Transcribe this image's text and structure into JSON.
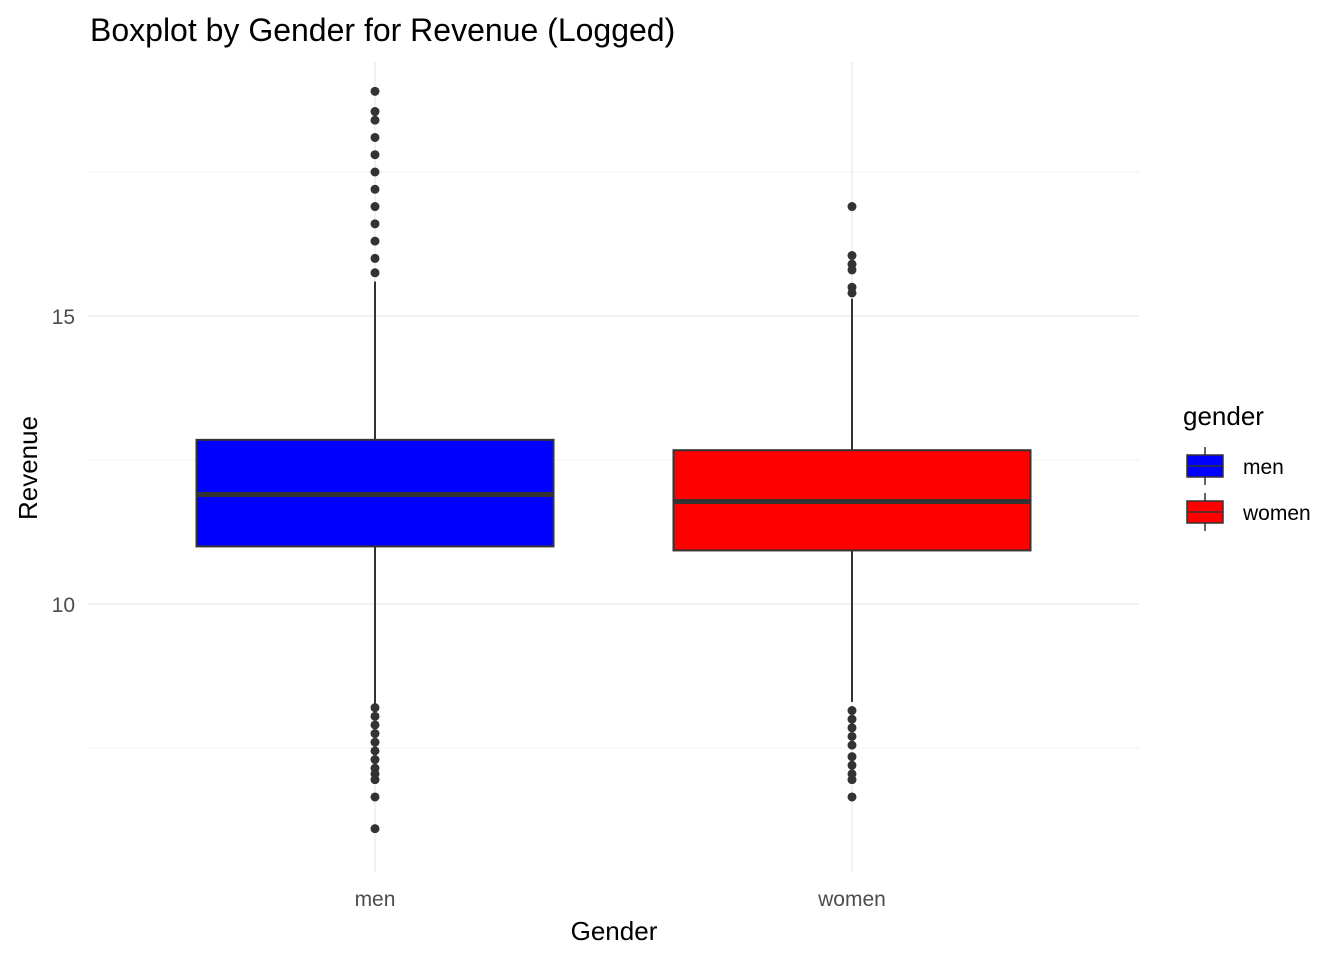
{
  "chart_data": {
    "type": "boxplot",
    "title": "Boxplot by Gender for Revenue (Logged)",
    "xlabel": "Gender",
    "ylabel": "Revenue",
    "categories": [
      "men",
      "women"
    ],
    "ylim": [
      5.6,
      19.6
    ],
    "yticks": [
      10,
      15
    ],
    "y_minor_ticks": [
      7.5,
      12.5,
      17.5
    ],
    "grid": true,
    "legend": {
      "title": "gender",
      "position": "right",
      "entries": [
        "men",
        "women"
      ]
    },
    "colors": {
      "men": "#0000ff",
      "women": "#ff0000",
      "box_border": "#333333",
      "whisker": "#333333",
      "outlier": "#333333"
    },
    "series": [
      {
        "name": "men",
        "q1": 11.0,
        "median": 11.9,
        "q3": 12.85,
        "whisker_low": 8.25,
        "whisker_high": 15.6,
        "outliers": [
          6.1,
          6.65,
          6.95,
          7.05,
          7.15,
          7.3,
          7.45,
          7.6,
          7.75,
          7.9,
          8.05,
          8.2,
          15.75,
          16.0,
          16.3,
          16.6,
          16.9,
          17.2,
          17.5,
          17.8,
          18.1,
          18.4,
          18.55,
          18.9
        ]
      },
      {
        "name": "women",
        "q1": 10.93,
        "median": 11.78,
        "q3": 12.67,
        "whisker_low": 8.3,
        "whisker_high": 15.3,
        "outliers": [
          6.65,
          6.95,
          7.05,
          7.2,
          7.35,
          7.55,
          7.7,
          7.85,
          8.0,
          8.15,
          15.4,
          15.5,
          15.8,
          15.9,
          16.05,
          16.9
        ]
      }
    ]
  }
}
